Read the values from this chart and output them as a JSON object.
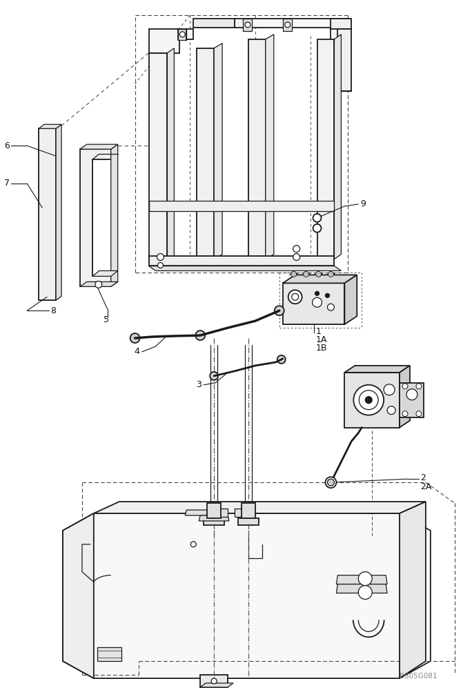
{
  "bg_color": "#ffffff",
  "lc": "#1a1a1a",
  "lc_light": "#555555",
  "watermark": "BS05G081",
  "figsize": [
    6.84,
    10.0
  ],
  "dpi": 100
}
